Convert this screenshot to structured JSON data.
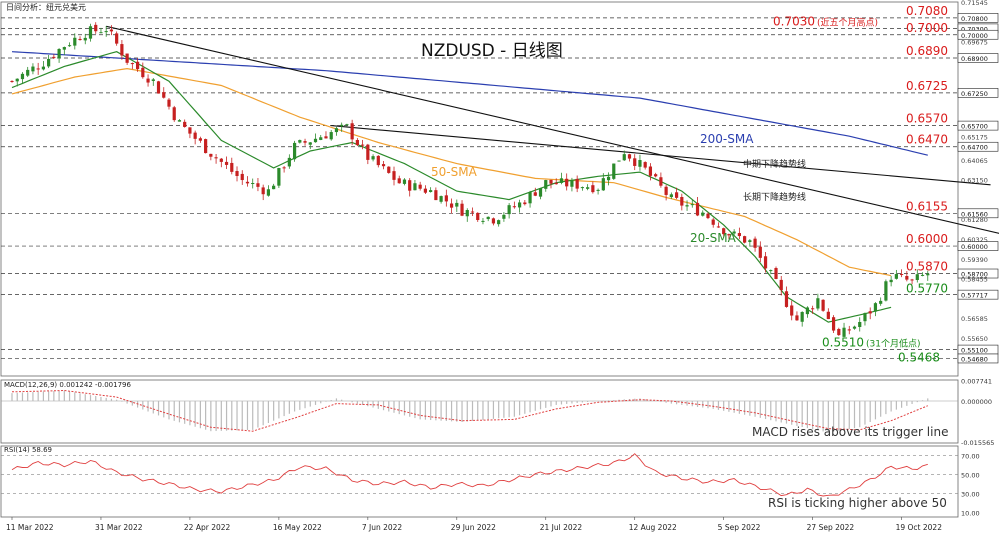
{
  "header_label": "日间分析：纽元兑美元",
  "chart_data": {
    "type": "candlestick",
    "title": "NZDUSD - 日线图",
    "symbol": "NZDUSD",
    "timeframe": "Daily",
    "x_tick_labels": [
      "11 Mar 2022",
      "31 Mar 2022",
      "22 Apr 2022",
      "16 May 2022",
      "7 Jun 2022",
      "29 Jun 2022",
      "21 Jul 2022",
      "12 Aug 2022",
      "5 Sep 2022",
      "27 Sep 2022",
      "19 Oct 2022"
    ],
    "price_axis_ticks": [
      "0.71545",
      "0.69675",
      "0.65175",
      "0.64065",
      "0.63150",
      "0.61280",
      "0.60325",
      "0.59390",
      "0.58455",
      "0.56585",
      "0.55650"
    ],
    "price_range": [
      0.5385,
      0.7155
    ],
    "price_levels": [
      {
        "label": "0.7080",
        "value": 0.708,
        "axis": "0.70800"
      },
      {
        "label": "0.7030",
        "value": 0.703,
        "axis": "0.70300",
        "note": "(近五个月高点)"
      },
      {
        "label": "0.7000",
        "value": 0.7,
        "axis": "0.70000"
      },
      {
        "label": "0.6890",
        "value": 0.689,
        "axis": "0.68900"
      },
      {
        "label": "0.6725",
        "value": 0.6725,
        "axis": "0.67250"
      },
      {
        "label": "0.6570",
        "value": 0.657,
        "axis": "0.65700"
      },
      {
        "label": "0.6470",
        "value": 0.647,
        "axis": "0.64700"
      },
      {
        "label": "0.6155",
        "value": 0.6155,
        "axis": "0.61560"
      },
      {
        "label": "0.6000",
        "value": 0.6,
        "axis": "0.60000"
      },
      {
        "label": "0.5870",
        "value": 0.587,
        "axis": "0.58700"
      },
      {
        "label": "0.5770",
        "value": 0.577,
        "axis": "0.57717"
      },
      {
        "label": "0.5510",
        "value": 0.551,
        "axis": "0.55100",
        "note": "(31个月低点)"
      },
      {
        "label": "0.5468",
        "value": 0.5468,
        "axis": "0.54680"
      }
    ],
    "level_colors": {
      "resistance": "#d91c1c",
      "support": "#1a8c1a"
    },
    "moving_averages": [
      {
        "label": "200-SMA",
        "color": "#2b3fb0",
        "points": [
          [
            0,
            0.692
          ],
          [
            60,
            0.683
          ],
          [
            120,
            0.67
          ],
          [
            160,
            0.652
          ],
          [
            175,
            0.643
          ]
        ]
      },
      {
        "label": "50-SMA",
        "color": "#f0a030",
        "points": [
          [
            0,
            0.672
          ],
          [
            12,
            0.68
          ],
          [
            22,
            0.684
          ],
          [
            40,
            0.676
          ],
          [
            55,
            0.661
          ],
          [
            70,
            0.649
          ],
          [
            85,
            0.639
          ],
          [
            100,
            0.632
          ],
          [
            115,
            0.63
          ],
          [
            125,
            0.623
          ],
          [
            140,
            0.614
          ],
          [
            150,
            0.603
          ],
          [
            160,
            0.59
          ],
          [
            168,
            0.586
          ]
        ]
      },
      {
        "label": "20-SMA",
        "color": "#2b8a2b",
        "points": [
          [
            0,
            0.675
          ],
          [
            10,
            0.685
          ],
          [
            20,
            0.692
          ],
          [
            30,
            0.678
          ],
          [
            40,
            0.65
          ],
          [
            50,
            0.637
          ],
          [
            57,
            0.645
          ],
          [
            65,
            0.649
          ],
          [
            75,
            0.639
          ],
          [
            85,
            0.626
          ],
          [
            95,
            0.622
          ],
          [
            104,
            0.63
          ],
          [
            112,
            0.633
          ],
          [
            120,
            0.635
          ],
          [
            128,
            0.626
          ],
          [
            136,
            0.61
          ],
          [
            142,
            0.595
          ],
          [
            148,
            0.576
          ],
          [
            156,
            0.564
          ],
          [
            163,
            0.568
          ],
          [
            168,
            0.571
          ]
        ]
      }
    ],
    "trendlines": [
      {
        "label": "长期下降趋势线",
        "points": [
          [
            18,
            0.704
          ],
          [
            200,
            0.5995
          ]
        ]
      },
      {
        "label": "中期下降趋势线",
        "points": [
          [
            61,
            0.657
          ],
          [
            187,
            0.629
          ]
        ]
      }
    ],
    "close_path": [
      [
        0,
        0.678
      ],
      [
        6,
        0.687
      ],
      [
        10,
        0.695
      ],
      [
        14,
        0.701
      ],
      [
        18,
        0.703
      ],
      [
        22,
        0.688
      ],
      [
        27,
        0.678
      ],
      [
        32,
        0.658
      ],
      [
        38,
        0.644
      ],
      [
        44,
        0.631
      ],
      [
        49,
        0.626
      ],
      [
        54,
        0.647
      ],
      [
        60,
        0.653
      ],
      [
        64,
        0.656
      ],
      [
        68,
        0.642
      ],
      [
        74,
        0.63
      ],
      [
        80,
        0.626
      ],
      [
        86,
        0.617
      ],
      [
        92,
        0.613
      ],
      [
        97,
        0.62
      ],
      [
        102,
        0.63
      ],
      [
        108,
        0.629
      ],
      [
        112,
        0.628
      ],
      [
        117,
        0.645
      ],
      [
        121,
        0.636
      ],
      [
        126,
        0.622
      ],
      [
        132,
        0.616
      ],
      [
        137,
        0.606
      ],
      [
        141,
        0.602
      ],
      [
        145,
        0.586
      ],
      [
        150,
        0.565
      ],
      [
        154,
        0.575
      ],
      [
        158,
        0.557
      ],
      [
        162,
        0.564
      ],
      [
        165,
        0.572
      ],
      [
        168,
        0.586
      ],
      [
        172,
        0.583
      ],
      [
        175,
        0.587
      ]
    ],
    "macd": {
      "label": "MACD(12,26,9) 0.001242 -0.001796",
      "axis_ticks": [
        "0.007741",
        "0.000000",
        "-0.015565"
      ],
      "range": [
        -0.016,
        0.008
      ],
      "histogram_path": [
        [
          0,
          0.003
        ],
        [
          10,
          0.004
        ],
        [
          20,
          0.0005
        ],
        [
          30,
          -0.007
        ],
        [
          38,
          -0.0115
        ],
        [
          46,
          -0.011
        ],
        [
          54,
          -0.004
        ],
        [
          62,
          0.001
        ],
        [
          70,
          -0.003
        ],
        [
          78,
          -0.007
        ],
        [
          86,
          -0.008
        ],
        [
          96,
          -0.006
        ],
        [
          104,
          -0.0015
        ],
        [
          112,
          0.0
        ],
        [
          120,
          0.001
        ],
        [
          126,
          -0.001
        ],
        [
          134,
          -0.003
        ],
        [
          142,
          -0.006
        ],
        [
          150,
          -0.0095
        ],
        [
          156,
          -0.012
        ],
        [
          162,
          -0.01
        ],
        [
          168,
          -0.004
        ],
        [
          175,
          0.001
        ]
      ],
      "signal_path": [
        [
          0,
          0.0035
        ],
        [
          10,
          0.004
        ],
        [
          20,
          0.0015
        ],
        [
          30,
          -0.005
        ],
        [
          38,
          -0.01
        ],
        [
          46,
          -0.0115
        ],
        [
          54,
          -0.0065
        ],
        [
          62,
          -0.001
        ],
        [
          70,
          -0.0015
        ],
        [
          78,
          -0.0055
        ],
        [
          86,
          -0.0075
        ],
        [
          96,
          -0.007
        ],
        [
          104,
          -0.003
        ],
        [
          112,
          -0.0005
        ],
        [
          120,
          0.0005
        ],
        [
          126,
          0.0
        ],
        [
          134,
          -0.002
        ],
        [
          142,
          -0.0045
        ],
        [
          150,
          -0.008
        ],
        [
          156,
          -0.0105
        ],
        [
          162,
          -0.011
        ],
        [
          168,
          -0.0075
        ],
        [
          175,
          -0.0018
        ]
      ],
      "annotation": "MACD rises above its trigger line"
    },
    "rsi": {
      "label": "RSI(14) 58.69",
      "axis_ticks": [
        "70.00",
        "50.00",
        "30.00",
        "10.00"
      ],
      "range": [
        5,
        80
      ],
      "path": [
        [
          0,
          55
        ],
        [
          5,
          62
        ],
        [
          10,
          60
        ],
        [
          15,
          64
        ],
        [
          20,
          52
        ],
        [
          25,
          45
        ],
        [
          30,
          40
        ],
        [
          35,
          34
        ],
        [
          40,
          32
        ],
        [
          45,
          38
        ],
        [
          50,
          44
        ],
        [
          55,
          58
        ],
        [
          60,
          56
        ],
        [
          65,
          44
        ],
        [
          70,
          40
        ],
        [
          75,
          42
        ],
        [
          80,
          36
        ],
        [
          85,
          40
        ],
        [
          90,
          38
        ],
        [
          95,
          44
        ],
        [
          100,
          50
        ],
        [
          105,
          54
        ],
        [
          110,
          58
        ],
        [
          115,
          62
        ],
        [
          119,
          70
        ],
        [
          123,
          52
        ],
        [
          128,
          46
        ],
        [
          133,
          42
        ],
        [
          138,
          44
        ],
        [
          143,
          36
        ],
        [
          148,
          28
        ],
        [
          152,
          34
        ],
        [
          156,
          26
        ],
        [
          160,
          34
        ],
        [
          164,
          44
        ],
        [
          168,
          58
        ],
        [
          172,
          56
        ],
        [
          175,
          59
        ]
      ],
      "annotation": "RSI is ticking higher above 50"
    },
    "colors": {
      "bull": "#2b8a2b",
      "bear": "#c62020",
      "trend": "#111111",
      "grid": "#333333",
      "macd_signal": "#e04040",
      "macd_hist": "#bbbbbb",
      "rsi": "#e04040"
    }
  }
}
